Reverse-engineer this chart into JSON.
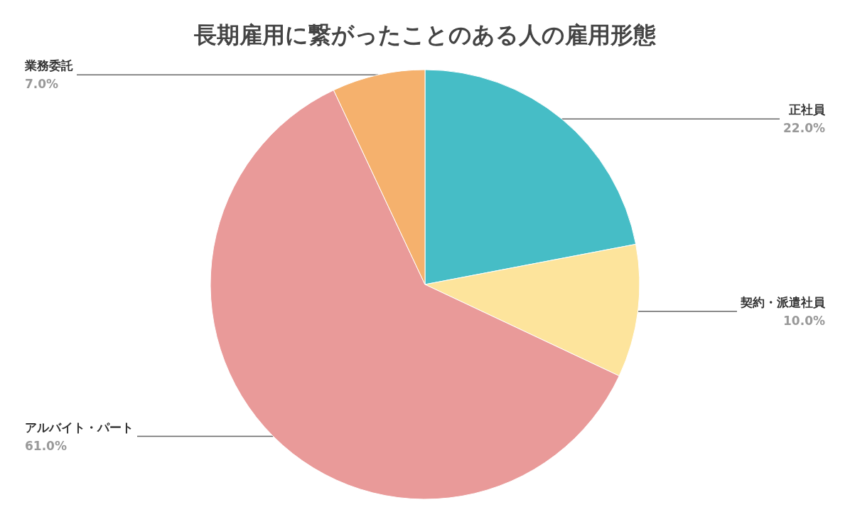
{
  "chart_data": {
    "type": "pie",
    "title": "長期雇用に繋がったことのある人の雇用形態",
    "categories": [
      "正社員",
      "契約・派遣社員",
      "アルバイト・パート",
      "業務委託"
    ],
    "values": [
      22,
      10,
      61,
      7
    ],
    "colors": [
      "#46bdc6",
      "#fde49c",
      "#e99a99",
      "#f5b16d"
    ],
    "value_labels": [
      "22.0%",
      "10.0%",
      "61.0%",
      "7.0%"
    ],
    "legend": false
  }
}
